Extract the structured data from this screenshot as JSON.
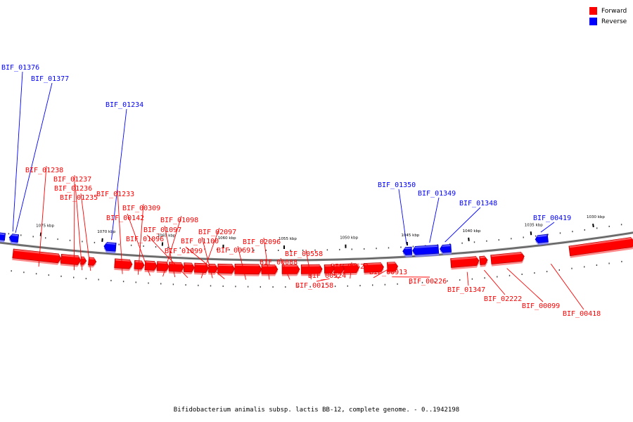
{
  "legend": {
    "forward_label": "Forward",
    "reverse_label": "Reverse",
    "forward_color": "#ff0000",
    "reverse_color": "#0000ff"
  },
  "caption": "Bifidobacterium animalis subsp. lactis BB-12, complete genome. - 0..1942198",
  "ticks": [
    "1075 kbp",
    "1070 kbp",
    "1065 kbp",
    "1060 kbp",
    "1055 kbp",
    "1050 kbp",
    "1045 kbp",
    "1040 kbp",
    "1035 kbp",
    "1030 kbp"
  ],
  "genes": [
    {
      "label": "BIF_01376",
      "strand": "reverse"
    },
    {
      "label": "BIF_01377",
      "strand": "reverse"
    },
    {
      "label": "BIF_01234",
      "strand": "reverse"
    },
    {
      "label": "BIF_01350",
      "strand": "reverse"
    },
    {
      "label": "BIF_01349",
      "strand": "reverse"
    },
    {
      "label": "BIF_01348",
      "strand": "reverse"
    },
    {
      "label": "BIF_00419",
      "strand": "reverse"
    },
    {
      "label": "BIF_01238",
      "strand": "forward"
    },
    {
      "label": "BIF_01237",
      "strand": "forward"
    },
    {
      "label": "BIF_01236",
      "strand": "forward"
    },
    {
      "label": "BIF_01235",
      "strand": "forward"
    },
    {
      "label": "BIF_01233",
      "strand": "forward"
    },
    {
      "label": "BIF_00309",
      "strand": "forward"
    },
    {
      "label": "BIF_00142",
      "strand": "forward"
    },
    {
      "label": "BIF_01098",
      "strand": "forward"
    },
    {
      "label": "BIF_01097",
      "strand": "forward"
    },
    {
      "label": "BIF_01096",
      "strand": "forward"
    },
    {
      "label": "BIF_02097",
      "strand": "forward"
    },
    {
      "label": "BIF_01100",
      "strand": "forward"
    },
    {
      "label": "BIF_01099",
      "strand": "forward"
    },
    {
      "label": "BIF_00691",
      "strand": "forward"
    },
    {
      "label": "BIF_02096",
      "strand": "forward"
    },
    {
      "label": "BIF_00088",
      "strand": "forward"
    },
    {
      "label": "BIF_00558",
      "strand": "forward"
    },
    {
      "label": "BIF_00523",
      "strand": "forward"
    },
    {
      "label": "BIF_00524",
      "strand": "forward"
    },
    {
      "label": "BIF_00158",
      "strand": "forward"
    },
    {
      "label": "BIF_00913",
      "strand": "forward"
    },
    {
      "label": "BIF_00226",
      "strand": "forward"
    },
    {
      "label": "BIF_01347",
      "strand": "forward"
    },
    {
      "label": "BIF_02222",
      "strand": "forward"
    },
    {
      "label": "BIF_00099",
      "strand": "forward"
    },
    {
      "label": "BIF_00418",
      "strand": "forward"
    }
  ]
}
